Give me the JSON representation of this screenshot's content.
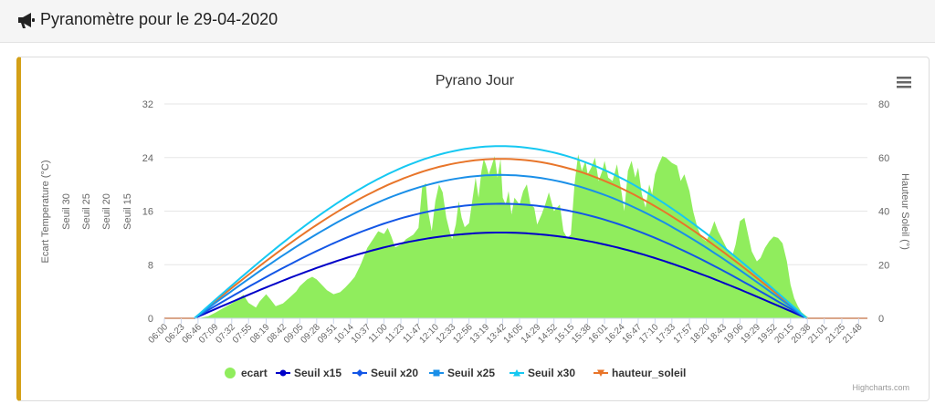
{
  "header": {
    "title": "Pyranomètre pour le 29-04-2020",
    "icon": "megaphone-icon"
  },
  "menu": {
    "icon": "hamburger-menu-icon"
  },
  "credit": "Highcharts.com",
  "chart_data": {
    "type": "line",
    "title": "Pyrano Jour",
    "ylabel": "Ecart Temperature (°C)",
    "y_extra_axis_titles": [
      "Seuil 30",
      "Seuil 25",
      "Seuil 20",
      "Seuil 15"
    ],
    "y2label": "Hauteur Soleil (°)",
    "ylim": [
      0,
      32
    ],
    "y2lim": [
      0,
      80
    ],
    "yticks": [
      0,
      8,
      16,
      24,
      32
    ],
    "y2ticks": [
      0,
      20,
      40,
      60,
      80
    ],
    "xlim": [
      "06:00",
      "22:00"
    ],
    "xticks": [
      "06:00",
      "06:23",
      "06:46",
      "07:09",
      "07:32",
      "07:55",
      "08:19",
      "08:42",
      "09:05",
      "09:28",
      "09:51",
      "10:14",
      "10:37",
      "11:00",
      "11:23",
      "11:47",
      "12:10",
      "12:33",
      "12:56",
      "13:19",
      "13:42",
      "14:05",
      "14:29",
      "14:52",
      "15:15",
      "15:38",
      "16:01",
      "16:24",
      "16:47",
      "17:10",
      "17:33",
      "17:57",
      "18:20",
      "18:43",
      "19:06",
      "19:29",
      "19:52",
      "20:15",
      "20:38",
      "21:01",
      "21:25",
      "21:48"
    ],
    "series": [
      {
        "name": "ecart",
        "type": "area",
        "color": "#90ed5d",
        "points": [
          [
            "06:46",
            0
          ],
          [
            "07:00",
            0.3
          ],
          [
            "07:09",
            0.8
          ],
          [
            "07:20",
            1.5
          ],
          [
            "07:32",
            2.2
          ],
          [
            "07:40",
            2.8
          ],
          [
            "07:48",
            3.5
          ],
          [
            "07:55",
            2.3
          ],
          [
            "08:05",
            1.6
          ],
          [
            "08:10",
            2.5
          ],
          [
            "08:19",
            3.6
          ],
          [
            "08:25",
            2.8
          ],
          [
            "08:32",
            1.8
          ],
          [
            "08:42",
            2.2
          ],
          [
            "08:50",
            3.0
          ],
          [
            "09:00",
            4.0
          ],
          [
            "09:05",
            4.8
          ],
          [
            "09:15",
            5.8
          ],
          [
            "09:22",
            6.2
          ],
          [
            "09:28",
            5.8
          ],
          [
            "09:35",
            5.0
          ],
          [
            "09:42",
            4.2
          ],
          [
            "09:51",
            3.6
          ],
          [
            "10:00",
            3.9
          ],
          [
            "10:07",
            4.6
          ],
          [
            "10:14",
            5.4
          ],
          [
            "10:20",
            6.2
          ],
          [
            "10:28",
            8.0
          ],
          [
            "10:37",
            10.5
          ],
          [
            "10:45",
            11.8
          ],
          [
            "10:52",
            13.0
          ],
          [
            "11:00",
            12.6
          ],
          [
            "11:05",
            13.5
          ],
          [
            "11:10",
            12.2
          ],
          [
            "11:15",
            10.6
          ],
          [
            "11:23",
            11.0
          ],
          [
            "11:30",
            11.8
          ],
          [
            "11:40",
            12.5
          ],
          [
            "11:47",
            13.5
          ],
          [
            "11:52",
            19.5
          ],
          [
            "11:57",
            20.2
          ],
          [
            "12:00",
            16.0
          ],
          [
            "12:05",
            13.0
          ],
          [
            "12:10",
            17.5
          ],
          [
            "12:15",
            20.0
          ],
          [
            "12:20",
            18.8
          ],
          [
            "12:25",
            15.0
          ],
          [
            "12:30",
            12.8
          ],
          [
            "12:33",
            11.8
          ],
          [
            "12:38",
            14.0
          ],
          [
            "12:42",
            17.5
          ],
          [
            "12:46",
            15.0
          ],
          [
            "12:50",
            13.6
          ],
          [
            "12:56",
            14.2
          ],
          [
            "13:01",
            18.0
          ],
          [
            "13:05",
            21.0
          ],
          [
            "13:09",
            18.0
          ],
          [
            "13:13",
            22.0
          ],
          [
            "13:16",
            23.8
          ],
          [
            "13:19",
            23.0
          ],
          [
            "13:23",
            21.5
          ],
          [
            "13:27",
            22.8
          ],
          [
            "13:31",
            24.2
          ],
          [
            "13:35",
            21.0
          ],
          [
            "13:39",
            23.8
          ],
          [
            "13:42",
            18.0
          ],
          [
            "13:46",
            17.0
          ],
          [
            "13:50",
            19.0
          ],
          [
            "13:54",
            15.5
          ],
          [
            "13:58",
            18.0
          ],
          [
            "14:05",
            17.0
          ],
          [
            "14:10",
            19.0
          ],
          [
            "14:15",
            20.0
          ],
          [
            "14:20",
            17.0
          ],
          [
            "14:25",
            16.5
          ],
          [
            "14:29",
            14.0
          ],
          [
            "14:35",
            15.5
          ],
          [
            "14:40",
            17.0
          ],
          [
            "14:45",
            18.8
          ],
          [
            "14:52",
            16.0
          ],
          [
            "15:00",
            17.0
          ],
          [
            "15:05",
            13.0
          ],
          [
            "15:10",
            12.0
          ],
          [
            "15:15",
            12.5
          ],
          [
            "15:20",
            20.0
          ],
          [
            "15:25",
            24.5
          ],
          [
            "15:30",
            22.0
          ],
          [
            "15:35",
            23.5
          ],
          [
            "15:38",
            21.5
          ],
          [
            "15:43",
            22.5
          ],
          [
            "15:48",
            24.0
          ],
          [
            "15:53",
            20.5
          ],
          [
            "15:58",
            22.0
          ],
          [
            "16:01",
            23.5
          ],
          [
            "16:06",
            21.0
          ],
          [
            "16:12",
            20.5
          ],
          [
            "16:18",
            23.0
          ],
          [
            "16:24",
            19.0
          ],
          [
            "16:28",
            16.0
          ],
          [
            "16:33",
            22.0
          ],
          [
            "16:38",
            23.5
          ],
          [
            "16:43",
            21.0
          ],
          [
            "16:47",
            22.5
          ],
          [
            "16:52",
            18.5
          ],
          [
            "16:57",
            16.5
          ],
          [
            "17:02",
            20.0
          ],
          [
            "17:06",
            18.5
          ],
          [
            "17:10",
            21.5
          ],
          [
            "17:15",
            23.0
          ],
          [
            "17:20",
            24.2
          ],
          [
            "17:25",
            24.0
          ],
          [
            "17:33",
            23.2
          ],
          [
            "17:40",
            22.8
          ],
          [
            "17:45",
            20.5
          ],
          [
            "17:50",
            21.5
          ],
          [
            "17:57",
            19.0
          ],
          [
            "18:02",
            16.0
          ],
          [
            "18:08",
            13.5
          ],
          [
            "18:14",
            12.0
          ],
          [
            "18:20",
            11.5
          ],
          [
            "18:26",
            13.0
          ],
          [
            "18:31",
            14.5
          ],
          [
            "18:36",
            13.0
          ],
          [
            "18:43",
            11.5
          ],
          [
            "18:50",
            10.0
          ],
          [
            "18:56",
            9.5
          ],
          [
            "19:00",
            11.0
          ],
          [
            "19:06",
            14.5
          ],
          [
            "19:12",
            15.0
          ],
          [
            "19:17",
            12.5
          ],
          [
            "19:22",
            10.0
          ],
          [
            "19:29",
            8.5
          ],
          [
            "19:34",
            9.0
          ],
          [
            "19:40",
            10.5
          ],
          [
            "19:46",
            11.5
          ],
          [
            "19:52",
            12.2
          ],
          [
            "19:58",
            12.0
          ],
          [
            "20:04",
            11.2
          ],
          [
            "20:10",
            8.5
          ],
          [
            "20:15",
            5.0
          ],
          [
            "20:20",
            3.0
          ],
          [
            "20:25",
            1.8
          ],
          [
            "20:30",
            0.9
          ],
          [
            "20:38",
            0.2
          ],
          [
            "20:42",
            0
          ]
        ]
      },
      {
        "name": "Seuil x15",
        "marker": "circle",
        "color": "#0000c8",
        "peak": 12.8,
        "start": "06:41",
        "end": "20:37"
      },
      {
        "name": "Seuil x20",
        "marker": "diamond",
        "color": "#1356e6",
        "peak": 17.1,
        "start": "06:41",
        "end": "20:37"
      },
      {
        "name": "Seuil x25",
        "marker": "square",
        "color": "#1a8fe8",
        "peak": 21.4,
        "start": "06:41",
        "end": "20:37"
      },
      {
        "name": "Seuil x30",
        "marker": "triangle",
        "color": "#16c8f2",
        "peak": 25.7,
        "start": "06:41",
        "end": "20:37"
      },
      {
        "name": "hauteur_soleil",
        "marker": "triangle-down",
        "color": "#e8752a",
        "axis": "right",
        "peak_deg": 59.5,
        "peak_time": "13:40",
        "start": "06:41",
        "end": "20:37"
      }
    ],
    "legend": {
      "position": "bottom-center"
    }
  }
}
